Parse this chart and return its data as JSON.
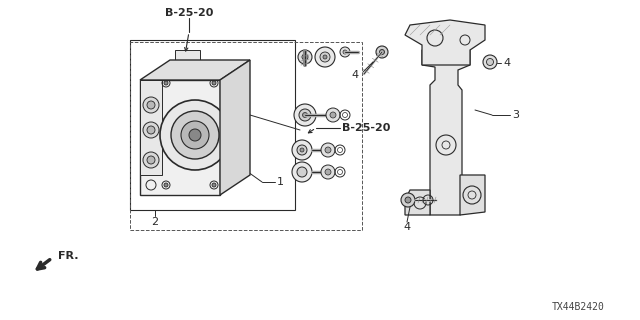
{
  "bg_color": "#ffffff",
  "line_color": "#2a2a2a",
  "diagram_code": "TX44B2420",
  "labels": {
    "B_25_20_top": "B-25-20",
    "B_25_20_right": "B-25-20",
    "label_1": "1",
    "label_2": "2",
    "label_3": "3",
    "label_4": "4",
    "fr_label": "FR."
  },
  "colors": {
    "main": "#2a2a2a",
    "mid": "#888888",
    "light": "#cccccc",
    "bg": "#ffffff"
  }
}
